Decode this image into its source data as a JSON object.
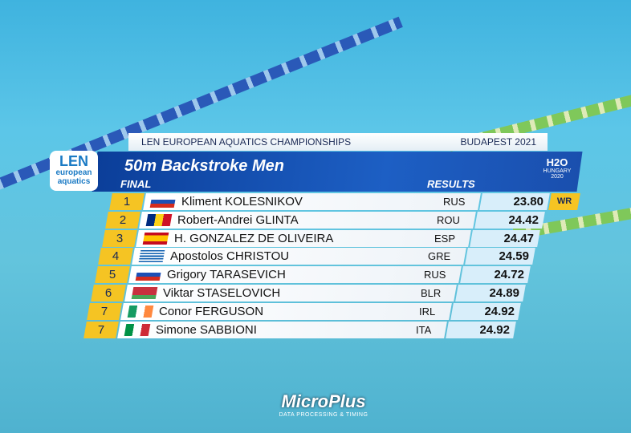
{
  "header": {
    "event_name": "LEN EUROPEAN AQUATICS CHAMPIONSHIPS",
    "location": "BUDAPEST 2021"
  },
  "logo": {
    "line1": "LEN",
    "line2": "european",
    "line3": "aquatics"
  },
  "race": {
    "title": "50m Backstroke Men",
    "stage": "FINAL",
    "results_label": "RESULTS"
  },
  "badge": {
    "line1": "H2O",
    "line2": "HUNGARY",
    "line3": "2020"
  },
  "table": {
    "rows": [
      {
        "rank": "1",
        "name": "Kliment KOLESNIKOV",
        "nation": "RUS",
        "time": "23.80",
        "record": "WR"
      },
      {
        "rank": "2",
        "name": "Robert-Andrei GLINTA",
        "nation": "ROU",
        "time": "24.42"
      },
      {
        "rank": "3",
        "name": "H. GONZALEZ DE OLIVEIRA",
        "nation": "ESP",
        "time": "24.47"
      },
      {
        "rank": "4",
        "name": "Apostolos CHRISTOU",
        "nation": "GRE",
        "time": "24.59"
      },
      {
        "rank": "5",
        "name": "Grigory TARASEVICH",
        "nation": "RUS",
        "time": "24.72"
      },
      {
        "rank": "6",
        "name": "Viktar STASELOVICH",
        "nation": "BLR",
        "time": "24.89"
      },
      {
        "rank": "7",
        "name": "Conor FERGUSON",
        "nation": "IRL",
        "time": "24.92"
      },
      {
        "rank": "7",
        "name": "Simone SABBIONI",
        "nation": "ITA",
        "time": "24.92"
      }
    ]
  },
  "footer": {
    "sponsor": "MicroPlus",
    "tagline": "DATA PROCESSING & TIMING"
  }
}
